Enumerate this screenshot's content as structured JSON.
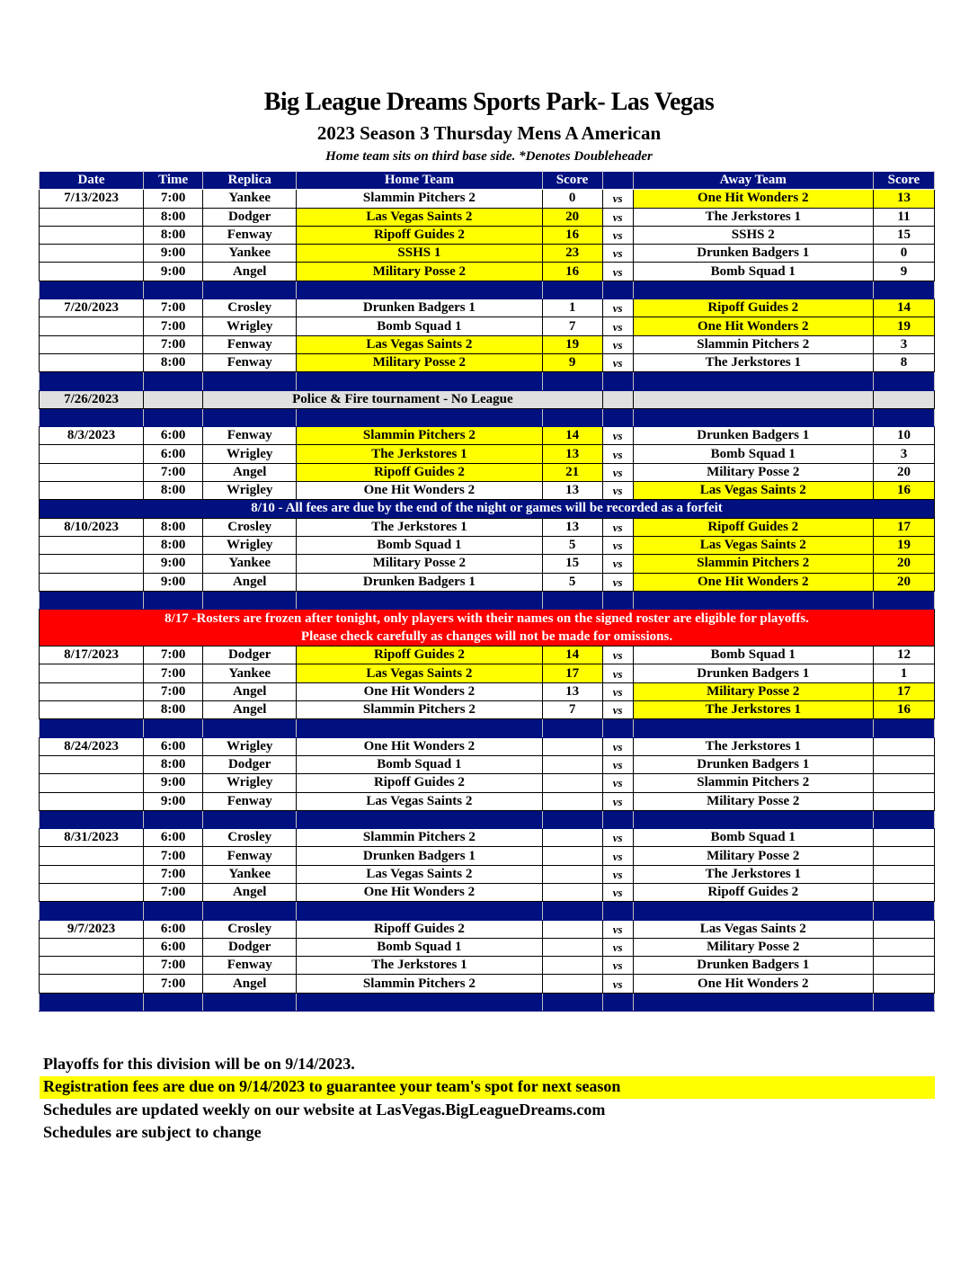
{
  "title": "Big League Dreams Sports Park- Las Vegas",
  "subtitle": "2023 Season 3 Thursday Mens A American",
  "note": "Home team sits on third base side.  *Denotes Doubleheader",
  "columns": [
    "Date",
    "Time",
    "Replica",
    "Home Team",
    "Score",
    "",
    "Away Team",
    "Score"
  ],
  "vs": "vs",
  "colors": {
    "header": "#00107f",
    "winner": "#ffff00",
    "alert": "#ff0000",
    "gray": "#e0e0e0"
  },
  "rows": [
    {
      "type": "game",
      "date": "7/13/2023",
      "time": "7:00",
      "replica": "Yankee",
      "home": "Slammin Pitchers 2",
      "hs": "0",
      "away": "One Hit Wonders 2",
      "as": "13",
      "win": "away"
    },
    {
      "type": "game",
      "date": "",
      "time": "8:00",
      "replica": "Dodger",
      "home": "Las Vegas Saints 2",
      "hs": "20",
      "away": "The Jerkstores 1",
      "as": "11",
      "win": "home"
    },
    {
      "type": "game",
      "date": "",
      "time": "8:00",
      "replica": "Fenway",
      "home": "Ripoff Guides 2",
      "hs": "16",
      "away": "SSHS 2",
      "as": "15",
      "win": "home"
    },
    {
      "type": "game",
      "date": "",
      "time": "9:00",
      "replica": "Yankee",
      "home": "SSHS 1",
      "hs": "23",
      "away": "Drunken Badgers 1",
      "as": "0",
      "win": "home"
    },
    {
      "type": "game",
      "date": "",
      "time": "9:00",
      "replica": "Angel",
      "home": "Military Posse 2",
      "hs": "16",
      "away": "Bomb Squad 1",
      "as": "9",
      "win": "home"
    },
    {
      "type": "sep"
    },
    {
      "type": "game",
      "date": "7/20/2023",
      "time": "7:00",
      "replica": "Crosley",
      "home": "Drunken Badgers 1",
      "hs": "1",
      "away": "Ripoff Guides 2",
      "as": "14",
      "win": "away"
    },
    {
      "type": "game",
      "date": "",
      "time": "7:00",
      "replica": "Wrigley",
      "home": "Bomb Squad 1",
      "hs": "7",
      "away": "One Hit Wonders 2",
      "as": "19",
      "win": "away"
    },
    {
      "type": "game",
      "date": "",
      "time": "7:00",
      "replica": "Fenway",
      "home": "Las Vegas Saints 2",
      "hs": "19",
      "away": "Slammin Pitchers 2",
      "as": "3",
      "win": "home"
    },
    {
      "type": "game",
      "date": "",
      "time": "8:00",
      "replica": "Fenway",
      "home": "Military Posse 2",
      "hs": "9",
      "away": "The Jerkstores 1",
      "as": "8",
      "win": "home"
    },
    {
      "type": "sep"
    },
    {
      "type": "gray",
      "date": "7/26/2023",
      "text": "Police & Fire tournament - No League"
    },
    {
      "type": "sep"
    },
    {
      "type": "game",
      "date": "8/3/2023",
      "time": "6:00",
      "replica": "Fenway",
      "home": "Slammin Pitchers 2",
      "hs": "14",
      "away": "Drunken Badgers 1",
      "as": "10",
      "win": "home"
    },
    {
      "type": "game",
      "date": "",
      "time": "6:00",
      "replica": "Wrigley",
      "home": "The Jerkstores 1",
      "hs": "13",
      "away": "Bomb Squad 1",
      "as": "3",
      "win": "home"
    },
    {
      "type": "game",
      "date": "",
      "time": "7:00",
      "replica": "Angel",
      "home": "Ripoff Guides 2",
      "hs": "21",
      "away": "Military Posse 2",
      "as": "20",
      "win": "home"
    },
    {
      "type": "game",
      "date": "",
      "time": "8:00",
      "replica": "Wrigley",
      "home": "One Hit Wonders 2",
      "hs": "13",
      "away": "Las Vegas Saints 2",
      "as": "16",
      "win": "away"
    },
    {
      "type": "notice",
      "text": "8/10 - All fees are due by the end of the night or games will be recorded as a forfeit"
    },
    {
      "type": "game",
      "date": "8/10/2023",
      "time": "8:00",
      "replica": "Crosley",
      "home": "The Jerkstores 1",
      "hs": "13",
      "away": "Ripoff Guides 2",
      "as": "17",
      "win": "away"
    },
    {
      "type": "game",
      "date": "",
      "time": "8:00",
      "replica": "Wrigley",
      "home": "Bomb Squad 1",
      "hs": "5",
      "away": "Las Vegas Saints 2",
      "as": "19",
      "win": "away"
    },
    {
      "type": "game",
      "date": "",
      "time": "9:00",
      "replica": "Yankee",
      "home": "Military Posse 2",
      "hs": "15",
      "away": "Slammin Pitchers 2",
      "as": "20",
      "win": "away"
    },
    {
      "type": "game",
      "date": "",
      "time": "9:00",
      "replica": "Angel",
      "home": "Drunken Badgers 1",
      "hs": "5",
      "away": "One Hit Wonders 2",
      "as": "20",
      "win": "away"
    },
    {
      "type": "sep"
    },
    {
      "type": "red",
      "text": "8/17 -Rosters are frozen after tonight, only players with their names on the signed roster are eligible for playoffs.",
      "text2": "Please check carefully as changes will not be made for omissions."
    },
    {
      "type": "game",
      "date": "8/17/2023",
      "time": "7:00",
      "replica": "Dodger",
      "home": "Ripoff Guides 2",
      "hs": "14",
      "away": "Bomb Squad 1",
      "as": "12",
      "win": "home"
    },
    {
      "type": "game",
      "date": "",
      "time": "7:00",
      "replica": "Yankee",
      "home": "Las Vegas Saints 2",
      "hs": "17",
      "away": "Drunken Badgers 1",
      "as": "1",
      "win": "home"
    },
    {
      "type": "game",
      "date": "",
      "time": "7:00",
      "replica": "Angel",
      "home": "One Hit Wonders 2",
      "hs": "13",
      "away": "Military Posse 2",
      "as": "17",
      "win": "away"
    },
    {
      "type": "game",
      "date": "",
      "time": "8:00",
      "replica": "Angel",
      "home": "Slammin Pitchers 2",
      "hs": "7",
      "away": "The Jerkstores 1",
      "as": "16",
      "win": "away"
    },
    {
      "type": "sep"
    },
    {
      "type": "game",
      "date": "8/24/2023",
      "time": "6:00",
      "replica": "Wrigley",
      "home": "One Hit Wonders 2",
      "hs": "",
      "away": "The Jerkstores 1",
      "as": "",
      "win": ""
    },
    {
      "type": "game",
      "date": "",
      "time": "8:00",
      "replica": "Dodger",
      "home": "Bomb Squad 1",
      "hs": "",
      "away": "Drunken Badgers 1",
      "as": "",
      "win": ""
    },
    {
      "type": "game",
      "date": "",
      "time": "9:00",
      "replica": "Wrigley",
      "home": "Ripoff Guides 2",
      "hs": "",
      "away": "Slammin Pitchers 2",
      "as": "",
      "win": ""
    },
    {
      "type": "game",
      "date": "",
      "time": "9:00",
      "replica": "Fenway",
      "home": "Las Vegas Saints 2",
      "hs": "",
      "away": "Military Posse 2",
      "as": "",
      "win": ""
    },
    {
      "type": "sep"
    },
    {
      "type": "game",
      "date": "8/31/2023",
      "time": "6:00",
      "replica": "Crosley",
      "home": "Slammin Pitchers 2",
      "hs": "",
      "away": "Bomb Squad 1",
      "as": "",
      "win": ""
    },
    {
      "type": "game",
      "date": "",
      "time": "7:00",
      "replica": "Fenway",
      "home": "Drunken Badgers 1",
      "hs": "",
      "away": "Military Posse 2",
      "as": "",
      "win": ""
    },
    {
      "type": "game",
      "date": "",
      "time": "7:00",
      "replica": "Yankee",
      "home": "Las Vegas Saints 2",
      "hs": "",
      "away": "The Jerkstores 1",
      "as": "",
      "win": ""
    },
    {
      "type": "game",
      "date": "",
      "time": "7:00",
      "replica": "Angel",
      "home": "One Hit Wonders 2",
      "hs": "",
      "away": "Ripoff Guides 2",
      "as": "",
      "win": ""
    },
    {
      "type": "sep"
    },
    {
      "type": "game",
      "date": "9/7/2023",
      "time": "6:00",
      "replica": "Crosley",
      "home": "Ripoff Guides 2",
      "hs": "",
      "away": "Las Vegas Saints 2",
      "as": "",
      "win": ""
    },
    {
      "type": "game",
      "date": "",
      "time": "6:00",
      "replica": "Dodger",
      "home": "Bomb Squad 1",
      "hs": "",
      "away": "Military Posse 2",
      "as": "",
      "win": ""
    },
    {
      "type": "game",
      "date": "",
      "time": "7:00",
      "replica": "Fenway",
      "home": "The Jerkstores 1",
      "hs": "",
      "away": "Drunken Badgers 1",
      "as": "",
      "win": ""
    },
    {
      "type": "game",
      "date": "",
      "time": "7:00",
      "replica": "Angel",
      "home": "Slammin Pitchers 2",
      "hs": "",
      "away": "One Hit Wonders 2",
      "as": "",
      "win": ""
    },
    {
      "type": "sep"
    }
  ],
  "footer": {
    "playoffs": "Playoffs for this division will be on 9/14/2023.",
    "registration": "Registration fees are due on 9/14/2023 to guarantee your team's spot for next season",
    "website": "Schedules are updated weekly on our website at LasVegas.BigLeagueDreams.com",
    "subject": "Schedules are subject to change"
  }
}
